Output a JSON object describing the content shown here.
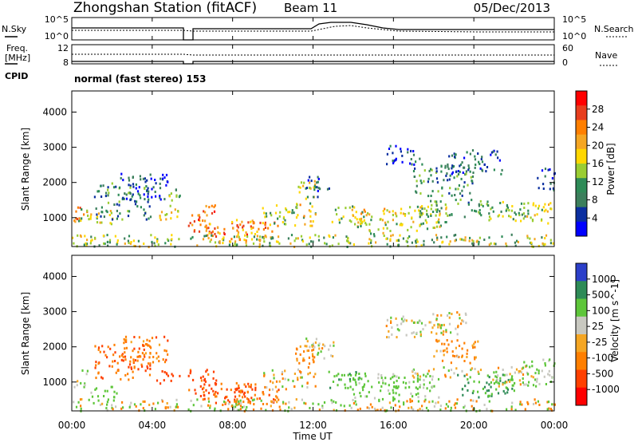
{
  "header": {
    "title": "Zhongshan Station (fitACF)",
    "beam": "Beam 11",
    "date": "05/Dec/2013"
  },
  "noise_panel": {
    "left_label": "N.Sky",
    "left_ticks": [
      "10^5",
      "10^0"
    ],
    "right_label": "N.Search",
    "right_ticks": [
      "10^5",
      "10^0"
    ]
  },
  "freq_panel": {
    "left_label_1": "Freq.",
    "left_label_2": "[MHz]",
    "left_ticks": [
      "12",
      "8"
    ],
    "right_ticks": [
      "60",
      "0"
    ],
    "right_label": "Nave"
  },
  "cpid": {
    "label": "CPID",
    "mode": "normal (fast stereo) 153"
  },
  "range_axis": {
    "label": "Slant Range [km]",
    "ticks": [
      "4000",
      "3000",
      "2000",
      "1000"
    ]
  },
  "time_axis": {
    "label": "Time UT",
    "ticks": [
      "00:00",
      "04:00",
      "08:00",
      "12:00",
      "16:00",
      "20:00",
      "00:00"
    ]
  },
  "power_colorbar": {
    "label": "Power [dB]",
    "ticks": [
      "28",
      "24",
      "20",
      "16",
      "12",
      "8",
      "4"
    ],
    "colors": [
      "#ff0000",
      "#e83e1e",
      "#ff7f00",
      "#f5a623",
      "#ffd700",
      "#9acd32",
      "#2e8b57",
      "#3c7f5c",
      "#0b2fa0",
      "#0000ff"
    ]
  },
  "velocity_colorbar": {
    "label": "Velocity [m s^-1]",
    "ticks": [
      "1000",
      "500",
      "100",
      "25",
      "-25",
      "-100",
      "-500",
      "-1000"
    ],
    "colors": [
      "#2c3fc9",
      "#2e8b57",
      "#5ec63a",
      "#c8c8c0",
      "#f5a623",
      "#ff7f00",
      "#ff4000",
      "#ff0000"
    ]
  },
  "chart_data": {
    "type": "heatmap",
    "x_range_hours": [
      0,
      24
    ],
    "y_range_km": [
      180,
      4600
    ],
    "data_gap_hours": [
      5.35,
      5.75
    ],
    "power_blobs": [
      {
        "t": 0.3,
        "r": 1100,
        "dt": 0.5,
        "dr": 260,
        "dB": 22
      },
      {
        "t": 1.2,
        "r": 1050,
        "dt": 0.9,
        "dr": 220,
        "dB": 16
      },
      {
        "t": 2.5,
        "r": 1500,
        "dt": 1.4,
        "dr": 520,
        "dB": 10
      },
      {
        "t": 3.6,
        "r": 1900,
        "dt": 1.2,
        "dr": 380,
        "dB": 6
      },
      {
        "t": 4.8,
        "r": 1150,
        "dt": 0.6,
        "dr": 200,
        "dB": 20
      },
      {
        "t": 5.1,
        "r": 1500,
        "dt": 0.3,
        "dr": 350,
        "dB": 12
      },
      {
        "t": 6.4,
        "r": 1000,
        "dt": 0.8,
        "dr": 380,
        "dB": 24
      },
      {
        "t": 7.8,
        "r": 650,
        "dt": 1.3,
        "dr": 300,
        "dB": 24
      },
      {
        "t": 9.2,
        "r": 700,
        "dt": 1.1,
        "dr": 300,
        "dB": 22
      },
      {
        "t": 10.3,
        "r": 1100,
        "dt": 0.9,
        "dr": 300,
        "dB": 14
      },
      {
        "t": 11.6,
        "r": 1450,
        "dt": 0.5,
        "dr": 650,
        "dB": 18
      },
      {
        "t": 12.2,
        "r": 1900,
        "dt": 0.6,
        "dr": 300,
        "dB": 8
      },
      {
        "t": 13.8,
        "r": 1100,
        "dt": 0.9,
        "dr": 260,
        "dB": 14
      },
      {
        "t": 15.0,
        "r": 900,
        "dt": 1.1,
        "dr": 380,
        "dB": 18
      },
      {
        "t": 16.5,
        "r": 2800,
        "dt": 0.9,
        "dr": 280,
        "dB": 6
      },
      {
        "t": 17.3,
        "r": 1000,
        "dt": 1.4,
        "dr": 350,
        "dB": 16
      },
      {
        "t": 18.5,
        "r": 2100,
        "dt": 1.6,
        "dr": 450,
        "dB": 10
      },
      {
        "t": 18.8,
        "r": 1300,
        "dt": 1.7,
        "dr": 250,
        "dB": 12
      },
      {
        "t": 20.0,
        "r": 2600,
        "dt": 1.4,
        "dr": 350,
        "dB": 8
      },
      {
        "t": 21.5,
        "r": 1200,
        "dt": 1.3,
        "dr": 300,
        "dB": 14
      },
      {
        "t": 23.0,
        "r": 1150,
        "dt": 0.9,
        "dr": 300,
        "dB": 16
      },
      {
        "t": 23.6,
        "r": 2100,
        "dt": 0.5,
        "dr": 350,
        "dB": 6
      }
    ],
    "velocity_blobs": [
      {
        "t": 0.3,
        "r": 1150,
        "dt": 0.5,
        "dr": 260,
        "v": 100
      },
      {
        "t": 1.5,
        "r": 700,
        "dt": 0.7,
        "dr": 200,
        "v": 100
      },
      {
        "t": 2.5,
        "r": 1600,
        "dt": 1.4,
        "dr": 500,
        "v": -300
      },
      {
        "t": 3.6,
        "r": 1950,
        "dt": 1.2,
        "dr": 380,
        "v": -200
      },
      {
        "t": 4.8,
        "r": 1150,
        "dt": 0.6,
        "dr": 200,
        "v": -400
      },
      {
        "t": 6.4,
        "r": 1000,
        "dt": 0.8,
        "dr": 380,
        "v": -400
      },
      {
        "t": 7.8,
        "r": 700,
        "dt": 1.3,
        "dr": 300,
        "v": -300
      },
      {
        "t": 9.2,
        "r": 700,
        "dt": 1.1,
        "dr": 300,
        "v": -300
      },
      {
        "t": 10.5,
        "r": 1100,
        "dt": 1.0,
        "dr": 300,
        "v": 0
      },
      {
        "t": 11.6,
        "r": 1500,
        "dt": 0.5,
        "dr": 650,
        "v": -150
      },
      {
        "t": 12.3,
        "r": 2000,
        "dt": 0.7,
        "dr": 350,
        "v": 0
      },
      {
        "t": 13.6,
        "r": 1100,
        "dt": 0.9,
        "dr": 260,
        "v": 200
      },
      {
        "t": 15.0,
        "r": 900,
        "dt": 1.1,
        "dr": 380,
        "v": 150
      },
      {
        "t": 16.5,
        "r": 2600,
        "dt": 0.9,
        "dr": 300,
        "v": 0
      },
      {
        "t": 17.0,
        "r": 900,
        "dt": 1.3,
        "dr": 350,
        "v": 150
      },
      {
        "t": 18.2,
        "r": 2700,
        "dt": 1.4,
        "dr": 350,
        "v": 0
      },
      {
        "t": 18.6,
        "r": 1300,
        "dt": 1.8,
        "dr": 150,
        "v": 0
      },
      {
        "t": 19.0,
        "r": 1900,
        "dt": 1.2,
        "dr": 350,
        "v": -150
      },
      {
        "t": 20.5,
        "r": 900,
        "dt": 1.5,
        "dr": 350,
        "v": 300
      },
      {
        "t": 22.0,
        "r": 1200,
        "dt": 1.2,
        "dr": 300,
        "v": 0
      },
      {
        "t": 23.2,
        "r": 1300,
        "dt": 0.8,
        "dr": 400,
        "v": 150
      }
    ]
  }
}
